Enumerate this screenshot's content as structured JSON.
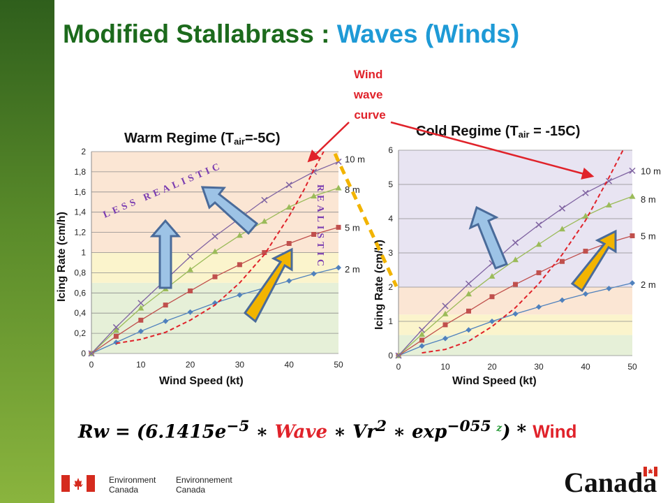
{
  "slide": {
    "title_part1": "Modified Stallabrass : ",
    "title_part2": "Waves (Winds)",
    "formula_rw": "Rw",
    "formula_eq": " = (",
    "formula_coef": "6.1415e",
    "formula_exp1": "−5",
    "formula_times1": " ∗ ",
    "formula_wave": "Wave",
    "formula_times2": " ∗ ",
    "formula_vr": "Vr",
    "formula_exp2": "2",
    "formula_times3": " ∗ ",
    "formula_expfn": "exp",
    "formula_exp3": "−055 ",
    "formula_z": "z",
    "formula_close": ") * ",
    "formula_wind": "Wind",
    "footer_en_line1": "Environment",
    "footer_en_line2": "Canada",
    "footer_fr_line1": "Environnement",
    "footer_fr_line2": "Canada",
    "wordmark": "Canada"
  },
  "annotations": {
    "wind_wave_curve": [
      "Wind",
      "wave",
      "curve"
    ],
    "less_realistic": "LESS REALISTIC",
    "realistic": "REALISTIC",
    "colors": {
      "red": "#e0222a",
      "purple": "#7a3cb0",
      "arrow_blue": "#9dc3e6",
      "arrow_gold": "#f2b400"
    }
  },
  "chart_data": [
    {
      "type": "line",
      "title": "Warm Regime (T",
      "title_sub": "air",
      "title_end": "=-5C)",
      "xlabel": "Wind Speed (kt)",
      "ylabel": "Icing Rate (cm/h)",
      "xlim": [
        0,
        50
      ],
      "ylim": [
        0,
        2
      ],
      "xticks": [
        "0",
        "10",
        "20",
        "30",
        "40",
        "50"
      ],
      "yticks": [
        "0",
        "0,2",
        "0,4",
        "0,6",
        "0,8",
        "1",
        "1,2",
        "1,4",
        "1,6",
        "1,8",
        "2"
      ],
      "bands": [
        {
          "from": 0,
          "to": 0.7,
          "color": "#e6f0d8"
        },
        {
          "from": 0.7,
          "to": 1.0,
          "color": "#fbf4cc"
        },
        {
          "from": 1.0,
          "to": 2.0,
          "color": "#fbe6d4"
        }
      ],
      "x": [
        0,
        5,
        10,
        15,
        20,
        25,
        30,
        35,
        40,
        45,
        50
      ],
      "series": [
        {
          "name": "2 m",
          "color": "#4f81bd",
          "marker": "diamond",
          "values": [
            0,
            0.11,
            0.22,
            0.32,
            0.41,
            0.5,
            0.58,
            0.65,
            0.72,
            0.79,
            0.85
          ]
        },
        {
          "name": "5 m",
          "color": "#c0504d",
          "marker": "square",
          "values": [
            0,
            0.17,
            0.33,
            0.48,
            0.62,
            0.76,
            0.88,
            1.0,
            1.09,
            1.18,
            1.25
          ]
        },
        {
          "name": "8 m",
          "color": "#9bbb59",
          "marker": "triangle",
          "values": [
            0,
            0.23,
            0.45,
            0.64,
            0.83,
            1.01,
            1.17,
            1.31,
            1.45,
            1.56,
            1.64
          ]
        },
        {
          "name": "10 m",
          "color": "#8064a2",
          "marker": "x",
          "values": [
            0,
            0.26,
            0.5,
            0.73,
            0.96,
            1.16,
            1.34,
            1.52,
            1.67,
            1.8,
            1.9
          ]
        }
      ],
      "wind_wave_curve": {
        "color": "#e0222a",
        "x": [
          5,
          10,
          15,
          20,
          25,
          30,
          35,
          40,
          43,
          45,
          47
        ],
        "values": [
          0.1,
          0.14,
          0.21,
          0.33,
          0.48,
          0.7,
          0.98,
          1.36,
          1.62,
          1.82,
          2.0
        ]
      }
    },
    {
      "type": "line",
      "title": "Cold Regime (T",
      "title_sub": "air",
      "title_end": " = -15C)",
      "xlabel": "Wind Speed (kt)",
      "ylabel": "Icing Rate (cm/h)",
      "xlim": [
        0,
        50
      ],
      "ylim": [
        0,
        6
      ],
      "xticks": [
        "0",
        "10",
        "20",
        "30",
        "40",
        "50"
      ],
      "yticks": [
        "0",
        "1",
        "2",
        "3",
        "4",
        "5",
        "6"
      ],
      "bands": [
        {
          "from": 0,
          "to": 0.6,
          "color": "#e6f0d8"
        },
        {
          "from": 0.6,
          "to": 1.2,
          "color": "#fbf4cc"
        },
        {
          "from": 1.2,
          "to": 2.0,
          "color": "#fbe6d4"
        },
        {
          "from": 2.0,
          "to": 6.0,
          "color": "#e8e4f2"
        }
      ],
      "x": [
        0,
        5,
        10,
        15,
        20,
        25,
        30,
        35,
        40,
        45,
        50
      ],
      "series": [
        {
          "name": "2 m",
          "color": "#4f81bd",
          "marker": "diamond",
          "values": [
            0,
            0.28,
            0.5,
            0.75,
            1.0,
            1.22,
            1.42,
            1.62,
            1.8,
            1.96,
            2.12
          ]
        },
        {
          "name": "5 m",
          "color": "#c0504d",
          "marker": "square",
          "values": [
            0,
            0.45,
            0.9,
            1.3,
            1.72,
            2.08,
            2.42,
            2.75,
            3.05,
            3.3,
            3.5
          ]
        },
        {
          "name": "8 m",
          "color": "#9bbb59",
          "marker": "triangle",
          "values": [
            0,
            0.62,
            1.22,
            1.8,
            2.32,
            2.8,
            3.25,
            3.7,
            4.08,
            4.4,
            4.65
          ]
        },
        {
          "name": "10 m",
          "color": "#8064a2",
          "marker": "x",
          "values": [
            0,
            0.75,
            1.45,
            2.1,
            2.7,
            3.3,
            3.82,
            4.3,
            4.75,
            5.1,
            5.4
          ]
        }
      ],
      "wind_wave_curve": {
        "color": "#e0222a",
        "x": [
          5,
          10,
          15,
          20,
          25,
          30,
          35,
          40,
          43,
          45,
          48
        ],
        "values": [
          0.08,
          0.18,
          0.42,
          0.85,
          1.4,
          2.1,
          2.95,
          3.95,
          4.7,
          5.2,
          6.0
        ]
      }
    }
  ]
}
